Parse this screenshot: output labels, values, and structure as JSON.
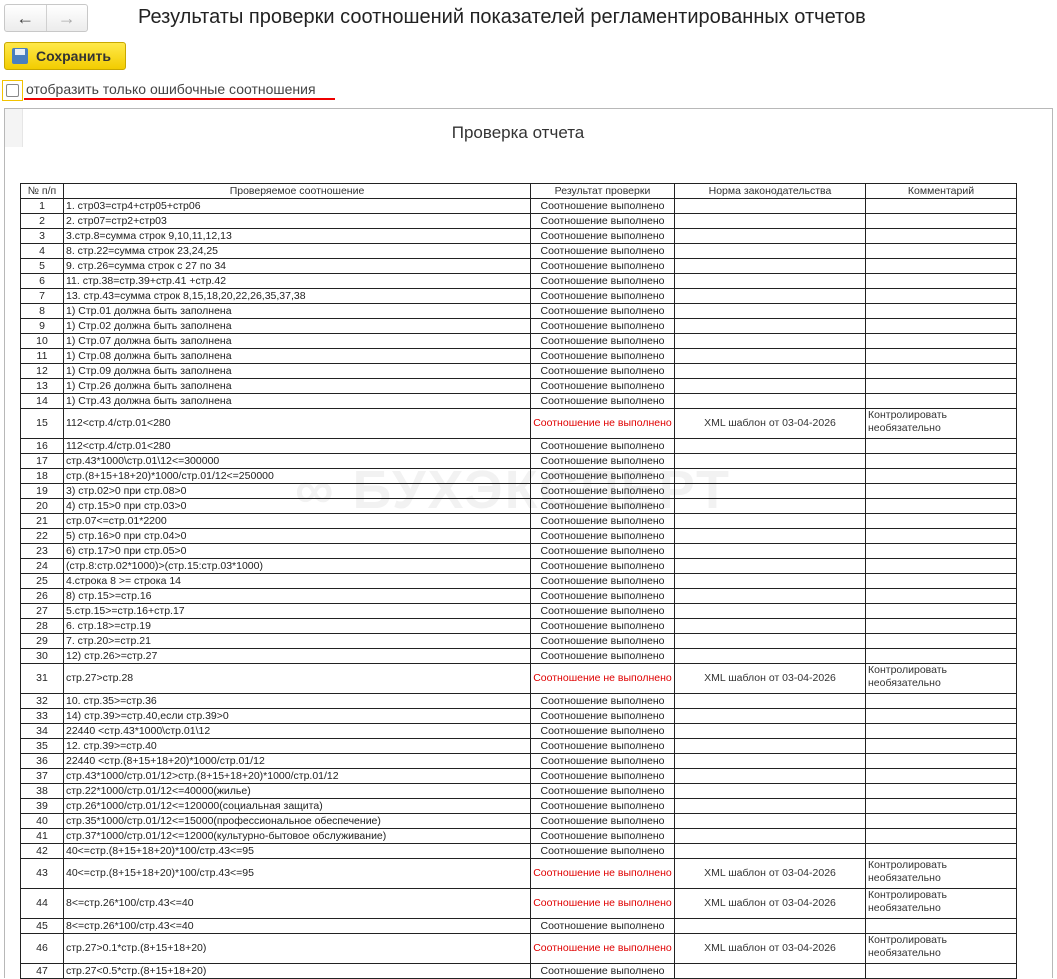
{
  "header": {
    "title": "Результаты проверки соотношений показателей регламентированных отчетов",
    "back_icon": "arrow-left-icon",
    "forward_icon": "arrow-right-icon"
  },
  "toolbar": {
    "save_label": "Сохранить",
    "save_icon": "floppy-disk-icon"
  },
  "filter": {
    "label": "отобразить только ошибочные соотношения",
    "checked": false
  },
  "report": {
    "title": "Проверка отчета",
    "watermark": "БУХЭКСПЕРТ",
    "columns": [
      "№ п/п",
      "Проверяемое соотношение",
      "Результат проверки",
      "Норма законодательства",
      "Комментарий"
    ],
    "ok_text": "Соотношение выполнено",
    "fail_text": "Соотношение не выполнено",
    "fail_color": "#e00000",
    "rows": [
      {
        "n": "1",
        "rel": "1. стр03=стр4+стр05+стр06",
        "ok": true
      },
      {
        "n": "2",
        "rel": "2. стр07=стр2+стр03",
        "ok": true
      },
      {
        "n": "3",
        "rel": "3.стр.8=сумма строк  9,10,11,12,13",
        "ok": true
      },
      {
        "n": "4",
        "rel": "8. стр.22=сумма строк 23,24,25",
        "ok": true
      },
      {
        "n": "5",
        "rel": "9. стр.26=сумма строк с 27 по 34",
        "ok": true
      },
      {
        "n": "6",
        "rel": "11. стр.38=стр.39+стр.41 +стр.42",
        "ok": true
      },
      {
        "n": "7",
        "rel": "13. стр.43=сумма строк 8,15,18,20,22,26,35,37,38",
        "ok": true
      },
      {
        "n": "8",
        "rel": "1) Стр.01 должна быть заполнена",
        "ok": true
      },
      {
        "n": "9",
        "rel": "1) Стр.02  должна быть заполнена",
        "ok": true
      },
      {
        "n": "10",
        "rel": "1) Стр.07 должна быть заполнена",
        "ok": true
      },
      {
        "n": "11",
        "rel": "1) Стр.08 должна быть заполнена",
        "ok": true
      },
      {
        "n": "12",
        "rel": "1) Стр.09 должна быть заполнена",
        "ok": true
      },
      {
        "n": "13",
        "rel": "1) Стр.26 должна быть заполнена",
        "ok": true
      },
      {
        "n": "14",
        "rel": "1) Стр.43 должна быть заполнена",
        "ok": true
      },
      {
        "n": "15",
        "rel": "112<стр.4/стр.01<280",
        "ok": false,
        "norm": "XML шаблон от 03-04-2026",
        "comment": "Контролировать необязательно"
      },
      {
        "n": "16",
        "rel": "112<стр.4/стр.01<280",
        "ok": true
      },
      {
        "n": "17",
        "rel": "стр.43*1000\\стр.01\\12<=300000",
        "ok": true
      },
      {
        "n": "18",
        "rel": "стр.(8+15+18+20)*1000/стр.01/12<=250000",
        "ok": true
      },
      {
        "n": "19",
        "rel": "3) стр.02>0 при стр.08>0",
        "ok": true
      },
      {
        "n": "20",
        "rel": "4) стр.15>0 при стр.03>0",
        "ok": true
      },
      {
        "n": "21",
        "rel": "стр.07<=стр.01*2200",
        "ok": true
      },
      {
        "n": "22",
        "rel": "5) стр.16>0 при стр.04>0",
        "ok": true
      },
      {
        "n": "23",
        "rel": "6) стр.17>0 при стр.05>0",
        "ok": true
      },
      {
        "n": "24",
        "rel": "(стр.8:стр.02*1000)>(стр.15:стр.03*1000)",
        "ok": true
      },
      {
        "n": "25",
        "rel": "4.строка 8 >= строка 14",
        "ok": true
      },
      {
        "n": "26",
        "rel": "8) стр.15>=стр.16",
        "ok": true
      },
      {
        "n": "27",
        "rel": "5.стр.15>=стр.16+стр.17",
        "ok": true
      },
      {
        "n": "28",
        "rel": "6. стр.18>=стр.19",
        "ok": true
      },
      {
        "n": "29",
        "rel": "7. стр.20>=стр.21",
        "ok": true
      },
      {
        "n": "30",
        "rel": "12) стр.26>=стр.27",
        "ok": true
      },
      {
        "n": "31",
        "rel": "стр.27>стр.28",
        "ok": false,
        "norm": "XML шаблон от 03-04-2026",
        "comment": "Контролировать необязательно"
      },
      {
        "n": "32",
        "rel": "10. стр.35>=стр.36",
        "ok": true
      },
      {
        "n": "33",
        "rel": "14) стр.39>=стр.40,если стр.39>0",
        "ok": true
      },
      {
        "n": "34",
        "rel": "22440 <стр.43*1000\\стр.01\\12",
        "ok": true
      },
      {
        "n": "35",
        "rel": "12. стр.39>=стр.40",
        "ok": true
      },
      {
        "n": "36",
        "rel": "22440 <стр.(8+15+18+20)*1000/стр.01/12",
        "ok": true
      },
      {
        "n": "37",
        "rel": "стр.43*1000/стр.01/12>стр.(8+15+18+20)*1000/стр.01/12",
        "ok": true
      },
      {
        "n": "38",
        "rel": "стр.22*1000/стр.01/12<=40000(жилье)",
        "ok": true
      },
      {
        "n": "39",
        "rel": "стр.26*1000/стр.01/12<=120000(социальная защита)",
        "ok": true
      },
      {
        "n": "40",
        "rel": "стр.35*1000/стр.01/12<=15000(профессиональное обеспечение)",
        "ok": true
      },
      {
        "n": "41",
        "rel": "стр.37*1000/стр.01/12<=12000(культурно-бытовое обслуживание)",
        "ok": true
      },
      {
        "n": "42",
        "rel": "40<=стр.(8+15+18+20)*100/стр.43<=95",
        "ok": true
      },
      {
        "n": "43",
        "rel": "40<=стр.(8+15+18+20)*100/стр.43<=95",
        "ok": false,
        "norm": "XML шаблон от 03-04-2026",
        "comment": "Контролировать необязательно"
      },
      {
        "n": "44",
        "rel": "8<=стр.26*100/стр.43<=40",
        "ok": false,
        "norm": "XML шаблон от 03-04-2026",
        "comment": "Контролировать необязательно"
      },
      {
        "n": "45",
        "rel": "8<=стр.26*100/стр.43<=40",
        "ok": true
      },
      {
        "n": "46",
        "rel": "стр.27>0.1*стр.(8+15+18+20)",
        "ok": false,
        "norm": "XML шаблон от 03-04-2026",
        "comment": "Контролировать необязательно"
      },
      {
        "n": "47",
        "rel": "стр.27<0.5*стр.(8+15+18+20)",
        "ok": true
      }
    ]
  }
}
